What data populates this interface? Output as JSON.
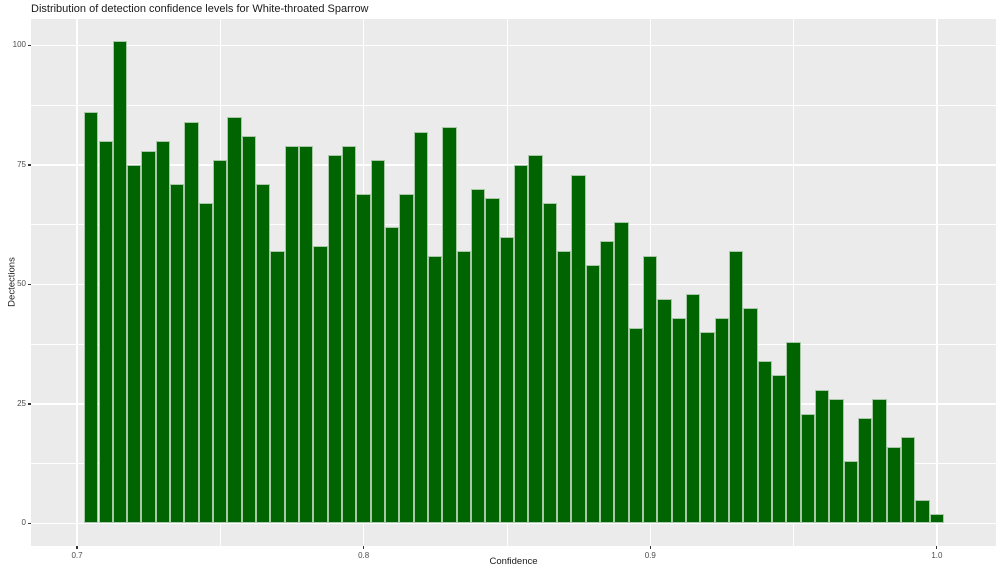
{
  "title": "Distribution of detection confidence levels for White-throated Sparrow",
  "chart_data": {
    "type": "bar",
    "subtype": "histogram",
    "title": "Distribution of detection confidence levels for White-throated Sparrow",
    "xlabel": "Confidence",
    "ylabel": "Dectections",
    "bin_width": 0.005,
    "bin_centers": [
      0.705,
      0.71,
      0.715,
      0.72,
      0.725,
      0.73,
      0.735,
      0.74,
      0.745,
      0.75,
      0.755,
      0.76,
      0.765,
      0.77,
      0.775,
      0.78,
      0.785,
      0.79,
      0.795,
      0.8,
      0.805,
      0.81,
      0.815,
      0.82,
      0.825,
      0.83,
      0.835,
      0.84,
      0.845,
      0.85,
      0.855,
      0.86,
      0.865,
      0.87,
      0.875,
      0.88,
      0.885,
      0.89,
      0.895,
      0.9,
      0.905,
      0.91,
      0.915,
      0.92,
      0.925,
      0.93,
      0.935,
      0.94,
      0.945,
      0.95,
      0.955,
      0.96,
      0.965,
      0.97,
      0.975,
      0.98,
      0.985,
      0.99,
      0.995,
      1.0
    ],
    "values": [
      86,
      80,
      101,
      75,
      78,
      80,
      71,
      84,
      67,
      76,
      85,
      81,
      71,
      57,
      79,
      79,
      58,
      77,
      79,
      69,
      76,
      62,
      69,
      82,
      56,
      83,
      57,
      70,
      68,
      60,
      75,
      77,
      67,
      57,
      73,
      54,
      59,
      63,
      41,
      56,
      47,
      43,
      48,
      40,
      43,
      57,
      45,
      34,
      31,
      38,
      23,
      28,
      26,
      13,
      22,
      26,
      16,
      18,
      5,
      2
    ],
    "x_ticks": [
      0.7,
      0.8,
      0.9,
      1.0
    ],
    "x_tick_labels": [
      "0.7",
      "0.8",
      "0.9",
      "1.0"
    ],
    "x_minor_ticks": [
      0.75,
      0.85,
      0.95
    ],
    "y_ticks": [
      0,
      25,
      50,
      75,
      100
    ],
    "y_tick_labels": [
      "0",
      "25",
      "50",
      "75",
      "100"
    ],
    "y_minor_ticks": [
      12.5,
      37.5,
      62.5,
      87.5
    ],
    "x_range_shown": [
      0.68395,
      1.02062
    ],
    "y_range_shown": [
      -4.71,
      105.54
    ],
    "grid": true,
    "legend": "none",
    "colors": {
      "bar_fill": "#006400",
      "bar_border": "#a8c8a8",
      "panel_bg": "#ebebeb",
      "grid": "#ffffff",
      "tick_mark": "#333333",
      "tick_label": "#4d4d4d",
      "text": "#1a1a1a",
      "background": "#ffffff"
    }
  }
}
